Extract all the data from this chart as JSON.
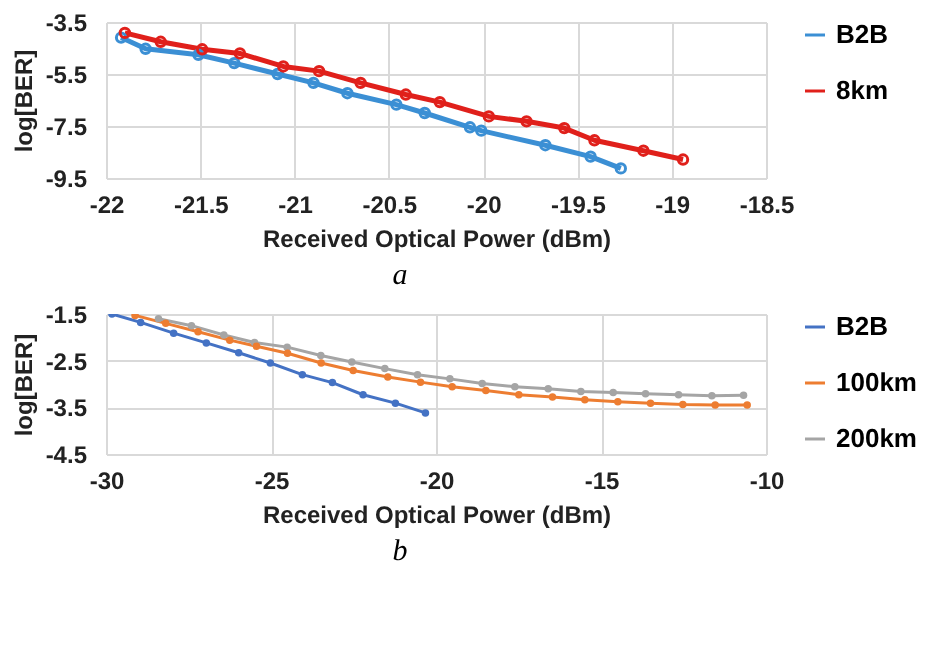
{
  "chart_data": [
    {
      "type": "line",
      "xlabel": "Received Optical Power (dBm)",
      "ylabel": "log[BER]",
      "annotations": [
        "a"
      ],
      "xlim": [
        -22,
        -18.5
      ],
      "xticks": [
        -22,
        -21.5,
        -21,
        -20.5,
        -20,
        -19.5,
        -19,
        -18.5
      ],
      "ylim": [
        -9.5,
        -3.5
      ],
      "yticks": [
        -3.5,
        -5.5,
        -7.5,
        -9.5
      ],
      "grid": true,
      "legend": "right",
      "marker": "circle",
      "line_style": "solid",
      "series": [
        {
          "name": "B2B",
          "color": "#3b8fd4",
          "x": [
            -21.92,
            -21.79,
            -21.51,
            -21.32,
            -21.09,
            -20.9,
            -20.72,
            -20.46,
            -20.31,
            -20.07,
            -20.01,
            -19.67,
            -19.43,
            -19.27
          ],
          "values": [
            -4.1,
            -4.53,
            -4.76,
            -5.08,
            -5.5,
            -5.84,
            -6.24,
            -6.68,
            -7.0,
            -7.55,
            -7.68,
            -8.24,
            -8.68,
            -9.13
          ]
        },
        {
          "name": "8km",
          "color": "#e0201b",
          "x": [
            -21.9,
            -21.71,
            -21.49,
            -21.29,
            -21.06,
            -20.87,
            -20.65,
            -20.41,
            -20.23,
            -19.97,
            -19.77,
            -19.57,
            -19.41,
            -19.15,
            -18.94
          ],
          "values": [
            -3.92,
            -4.26,
            -4.55,
            -4.71,
            -5.21,
            -5.39,
            -5.84,
            -6.29,
            -6.58,
            -7.13,
            -7.32,
            -7.58,
            -8.05,
            -8.45,
            -8.79
          ]
        }
      ]
    },
    {
      "type": "line",
      "xlabel": "Received Optical Power (dBm)",
      "ylabel": "log[BER]",
      "annotations": [
        "b"
      ],
      "xlim": [
        -30,
        -10
      ],
      "xticks": [
        -30,
        -25,
        -20,
        -15,
        -10
      ],
      "ylim": [
        -4.5,
        -1.5
      ],
      "yticks": [
        -1.5,
        -2.5,
        -3.5,
        -4.5
      ],
      "grid": true,
      "legend": "right",
      "marker": "circle",
      "line_style": "solid",
      "series": [
        {
          "name": "B2B",
          "color": "#4472c4",
          "x": [
            -29.82,
            -28.95,
            -27.95,
            -26.96,
            -25.98,
            -25.02,
            -24.05,
            -23.14,
            -22.21,
            -21.23,
            -20.32
          ],
          "values": [
            -1.5,
            -1.68,
            -1.91,
            -2.12,
            -2.33,
            -2.55,
            -2.8,
            -2.97,
            -3.23,
            -3.41,
            -3.62
          ]
        },
        {
          "name": "100km",
          "color": "#ed7d31",
          "x": [
            -29.12,
            -28.19,
            -27.21,
            -26.25,
            -25.44,
            -24.5,
            -23.48,
            -22.51,
            -21.46,
            -20.47,
            -19.51,
            -18.49,
            -17.49,
            -16.47,
            -15.49,
            -14.49,
            -13.5,
            -12.52,
            -11.54,
            -10.57
          ],
          "values": [
            -1.53,
            -1.7,
            -1.88,
            -2.06,
            -2.19,
            -2.34,
            -2.55,
            -2.71,
            -2.85,
            -2.96,
            -3.06,
            -3.14,
            -3.23,
            -3.28,
            -3.34,
            -3.38,
            -3.41,
            -3.44,
            -3.45,
            -3.45
          ]
        },
        {
          "name": "200km",
          "color": "#a5a5a5",
          "x": [
            -28.41,
            -27.41,
            -26.43,
            -25.5,
            -24.51,
            -23.49,
            -22.55,
            -21.55,
            -20.56,
            -19.58,
            -18.6,
            -17.61,
            -16.6,
            -15.61,
            -14.63,
            -13.65,
            -12.65,
            -11.64,
            -10.68
          ],
          "values": [
            -1.6,
            -1.75,
            -1.95,
            -2.11,
            -2.21,
            -2.39,
            -2.53,
            -2.67,
            -2.8,
            -2.89,
            -2.99,
            -3.06,
            -3.1,
            -3.16,
            -3.18,
            -3.21,
            -3.23,
            -3.25,
            -3.24
          ]
        }
      ]
    }
  ]
}
